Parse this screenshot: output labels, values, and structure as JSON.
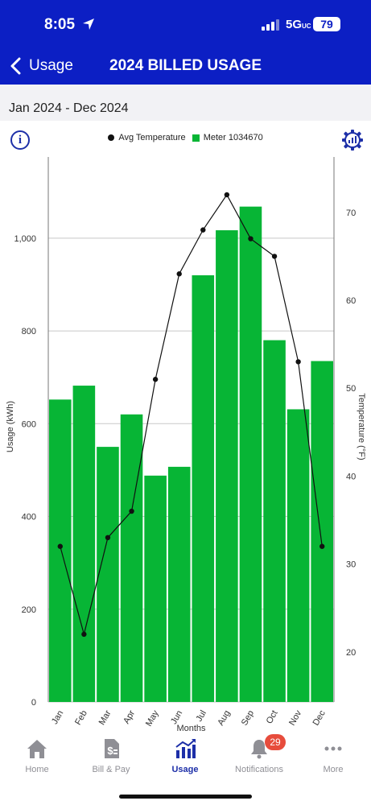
{
  "status": {
    "time": "8:05",
    "network": "5G",
    "network_suffix": "UC",
    "battery": "79"
  },
  "nav": {
    "back_label": "Usage",
    "title": "2024 BILLED USAGE"
  },
  "date_range": "Jan 2024 - Dec 2024",
  "legend": {
    "temperature": "Avg Temperature",
    "meter": "Meter 1034670"
  },
  "chart_data": {
    "type": "bar",
    "categories": [
      "Jan",
      "Feb",
      "Mar",
      "Apr",
      "May",
      "Jun",
      "Jul",
      "Aug",
      "Sep",
      "Oct",
      "Nov",
      "Dec"
    ],
    "series": [
      {
        "name": "Meter 1034670",
        "type": "bar",
        "axis": "left",
        "color": "#07b535",
        "values": [
          652,
          682,
          550,
          620,
          488,
          507,
          920,
          1017,
          1068,
          780,
          631,
          735
        ]
      },
      {
        "name": "Avg Temperature",
        "type": "line",
        "axis": "right",
        "color": "#111111",
        "values": [
          32,
          22,
          33,
          36,
          51,
          63,
          68,
          72,
          67,
          65,
          53,
          32
        ]
      }
    ],
    "xlabel": "Months",
    "ylabel": "Usage (kWh)",
    "ylabel_right": "Temperature (°F)",
    "ylim": [
      0,
      1175
    ],
    "ylim_right": [
      14.3,
      76.3
    ],
    "yticks": [
      0,
      200,
      400,
      600,
      800,
      1000
    ],
    "ytick_labels": [
      "0",
      "200",
      "400",
      "600",
      "800",
      "1,000"
    ],
    "yticks_right": [
      20,
      30,
      40,
      50,
      60,
      70
    ],
    "grid": true
  },
  "tabs": [
    {
      "label": "Home",
      "icon": "home-icon"
    },
    {
      "label": "Bill & Pay",
      "icon": "bill-icon"
    },
    {
      "label": "Usage",
      "icon": "usage-chart-icon"
    },
    {
      "label": "Notifications",
      "icon": "bell-icon",
      "badge": "29"
    },
    {
      "label": "More",
      "icon": "more-dots-icon"
    }
  ]
}
